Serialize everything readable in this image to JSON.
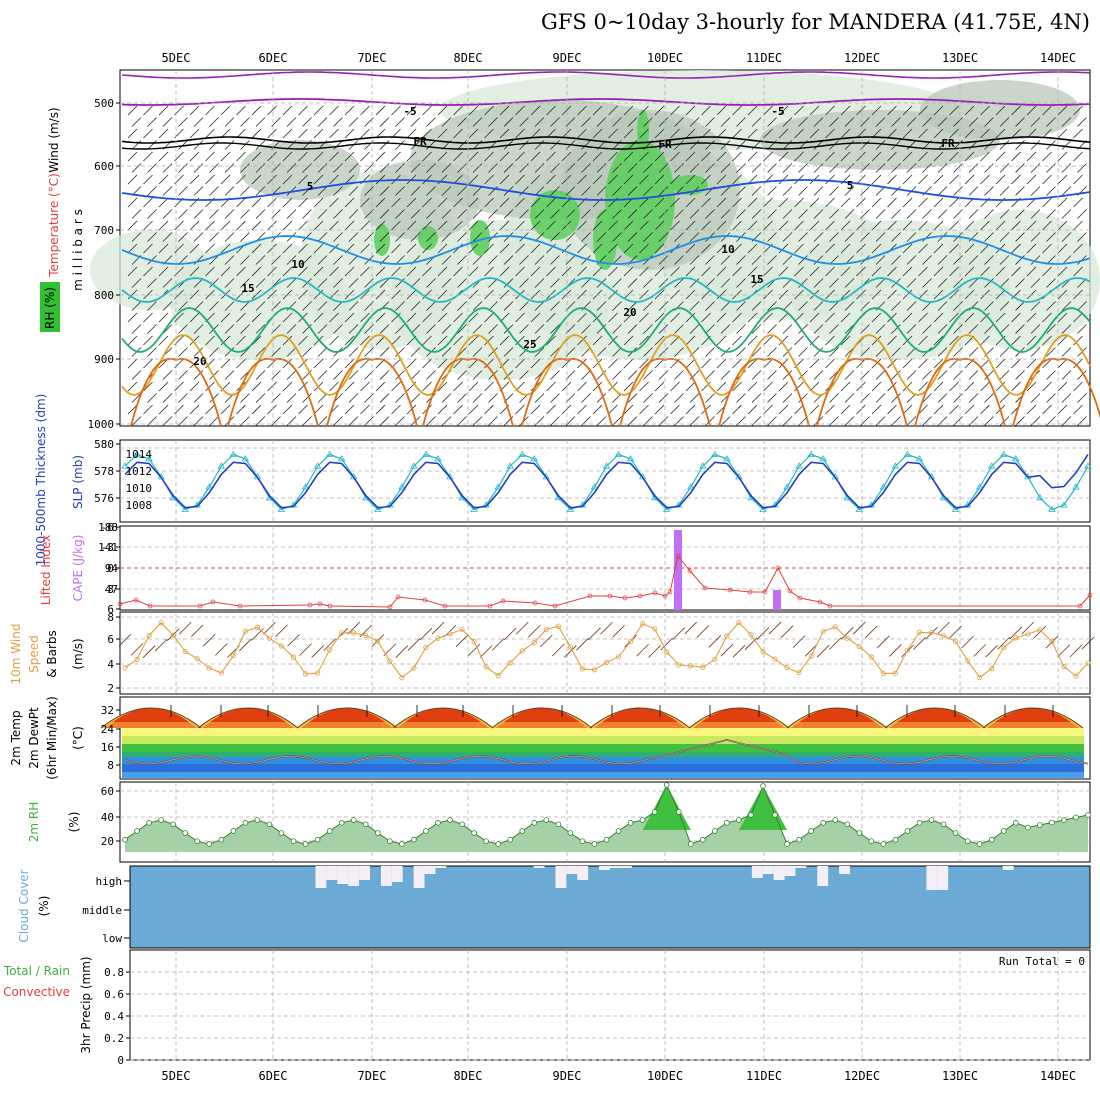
{
  "title": "GFS 0~10day 3-hourly for MANDERA (41.75E, 4N)",
  "dates": [
    "5DEC",
    "6DEC",
    "7DEC",
    "8DEC",
    "9DEC",
    "10DEC",
    "11DEC",
    "12DEC",
    "13DEC",
    "14DEC"
  ],
  "colors": {
    "purple": "#9a1fb5",
    "black": "#000000",
    "blue": "#1f4fe0",
    "lightblue": "#1e8fe8",
    "cyan": "#22b8c8",
    "green": "#1fae6e",
    "orange": "#e0a020",
    "darkorange": "#e06a10",
    "rh_light": "#d8e8d8",
    "rh_mid": "#b8c8b8",
    "rh_green": "#5fcf5f",
    "slp": "#20b8c8",
    "thickness": "#2040c0",
    "li": "#e04040",
    "cape": "#c070f0",
    "wind10": "#e0a040",
    "barb": "#6a3010",
    "dewpt": "#808080",
    "rh2m": "#40b040",
    "cloud": "#6aaad4"
  },
  "panels": {
    "upper": {
      "ylabel_wind": "Wind (m/s)",
      "ylabel_temp": "Temperature (°C)",
      "ylabel_rh": "RH (%)",
      "ylabel_mb": "m i l l i b a r s",
      "ticks": [
        "500",
        "600",
        "700",
        "800",
        "900",
        "1000"
      ],
      "contour_labels": [
        "-5",
        "-5",
        "FR",
        "FR",
        "FR",
        "5",
        "5",
        "10",
        "10",
        "15",
        "15",
        "20",
        "20",
        "25"
      ]
    },
    "slp": {
      "ylabel_thick": "1000-500mb Thickness (dm)",
      "ylabel_slp": "SLP (mb)",
      "ticks_left": [
        "580",
        "578",
        "576"
      ],
      "ticks_right": [
        "1014",
        "1012",
        "1010",
        "1008"
      ]
    },
    "cape": {
      "ylabel_li": "Lifted Index",
      "ylabel_cape": "CAPE (J/kg)",
      "ticks_left": [
        "-6",
        "-3",
        "0",
        "3",
        "6"
      ],
      "ticks_right": [
        "188",
        "141",
        "94",
        "47"
      ]
    },
    "wind10": {
      "ylabel1": "10m Wind",
      "ylabel2": "Speed",
      "ylabel3": "& Barbs",
      "unit": "(m/s)",
      "ticks": [
        "8",
        "6",
        "4",
        "2"
      ]
    },
    "temp2m": {
      "ylabel1": "2m Temp",
      "ylabel2": "2m DewPt",
      "ylabel3": "(6hr Min/Max)",
      "unit": "(°C)",
      "ticks": [
        "32",
        "24",
        "16",
        "8"
      ]
    },
    "rh2m": {
      "ylabel": "2m RH",
      "unit": "(%)",
      "ticks": [
        "60",
        "40",
        "20"
      ]
    },
    "cloud": {
      "ylabel": "Cloud Cover",
      "unit": "(%)",
      "levels": [
        "high",
        "middle",
        "low"
      ]
    },
    "precip": {
      "ylabel1": "Total / Rain",
      "ylabel2": "Convective",
      "ylabel3": "3hr Precip (mm)",
      "ticks": [
        "0.8",
        "0.6",
        "0.4",
        "0.2",
        "0"
      ],
      "run_total": "Run Total = 0"
    }
  },
  "chart_data": [
    {
      "type": "line",
      "name": "SLP and 1000-500mb thickness",
      "x": [
        "5DEC",
        "6DEC",
        "7DEC",
        "8DEC",
        "9DEC",
        "10DEC",
        "11DEC",
        "12DEC",
        "13DEC",
        "14DEC"
      ],
      "series": [
        {
          "values_slp_mb": [
            1013.5,
            1008,
            1014,
            1009,
            1014.5,
            1008,
            1014.5,
            1009,
            1014,
            1008
          ]
        },
        {
          "values_thickness_dm": [
            578,
            576,
            579,
            577,
            577,
            578,
            577,
            576,
            578,
            580
          ]
        }
      ],
      "ylim_thickness": [
        575,
        580
      ],
      "ylim_slp": [
        1007,
        1015
      ]
    },
    {
      "type": "bar",
      "name": "CAPE",
      "categories": [
        "10DEC",
        "11DEC"
      ],
      "values": [
        188,
        47
      ],
      "ylim": [
        0,
        188
      ]
    },
    {
      "type": "line",
      "name": "10m wind speed",
      "x": [
        "5DEC",
        "6DEC",
        "7DEC",
        "8DEC",
        "9DEC",
        "10DEC",
        "11DEC",
        "12DEC",
        "13DEC",
        "14DEC"
      ],
      "values": [
        4.5,
        6,
        3.5,
        5.5,
        3.5,
        4.5,
        3,
        7,
        7.5,
        6
      ],
      "ylim": [
        2,
        8
      ]
    },
    {
      "type": "area",
      "name": "2m RH",
      "x": [
        "5DEC",
        "6DEC",
        "7DEC",
        "8DEC",
        "9DEC",
        "10DEC",
        "11DEC",
        "12DEC",
        "13DEC",
        "14DEC"
      ],
      "values": [
        30,
        36,
        38,
        34,
        32,
        65,
        64,
        30,
        28,
        40
      ],
      "ylim": [
        10,
        70
      ]
    },
    {
      "type": "line",
      "name": "3hr Precip",
      "x": [
        "5DEC",
        "14DEC"
      ],
      "values": [
        0,
        0
      ],
      "ylim": [
        0,
        1
      ]
    }
  ]
}
